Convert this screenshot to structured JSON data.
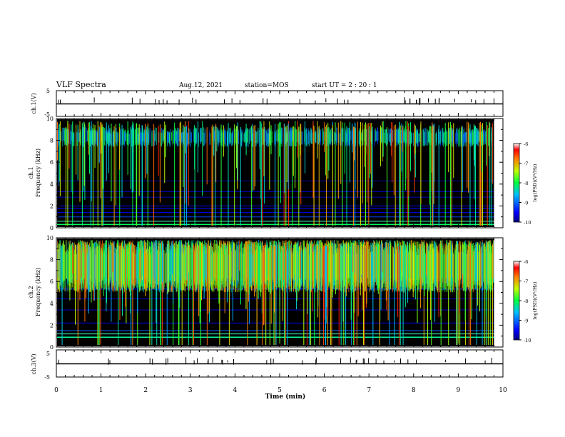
{
  "header": {
    "title": "VLF Spectra",
    "date": "Aug.12, 2021",
    "station": "station=MOS",
    "start": "start  UT =  2 : 20 : 1"
  },
  "colorbar": {
    "label": "log(PSD)(V²/Hz)",
    "ticks": [
      "-6",
      "-7",
      "-8",
      "-9",
      "-10"
    ]
  },
  "chart_data": [
    {
      "type": "line",
      "name": "ch1-voltage",
      "ylabel": "ch.1(V)",
      "ylim": [
        -5,
        5
      ],
      "x": [
        0,
        10
      ],
      "y": [
        0,
        0
      ]
    },
    {
      "type": "heatmap",
      "name": "ch1-spectrogram",
      "ylabel": "ch.1\nFrequency (kHz)",
      "xlim": [
        0,
        10
      ],
      "ylim": [
        0,
        10
      ],
      "y_ticks": [
        "0",
        "2",
        "4",
        "6",
        "8",
        "10"
      ],
      "color_range": [
        -10,
        -6
      ],
      "data_end_min": 9.8
    },
    {
      "type": "heatmap",
      "name": "ch2-spectrogram",
      "ylabel": "ch.2\nFrequency (kHz)",
      "xlim": [
        0,
        10
      ],
      "ylim": [
        0,
        10
      ],
      "y_ticks": [
        "0",
        "2",
        "4",
        "6",
        "8",
        "10"
      ],
      "color_range": [
        -10,
        -6
      ],
      "data_end_min": 9.8
    },
    {
      "type": "line",
      "name": "ch3-voltage",
      "ylabel": "ch.3(V)",
      "ylim": [
        -5,
        5
      ],
      "x": [
        0,
        10
      ],
      "y": [
        0,
        0
      ]
    }
  ],
  "axes": {
    "xlabel": "Time (min)",
    "x_ticks": [
      "0",
      "1",
      "2",
      "3",
      "4",
      "5",
      "6",
      "7",
      "8",
      "9",
      "10"
    ],
    "v_ticks": [
      "5",
      "-5"
    ],
    "ch1_label": "ch.1",
    "ch2_label": "ch.2",
    "freq_label": "Frequency (kHz)"
  }
}
